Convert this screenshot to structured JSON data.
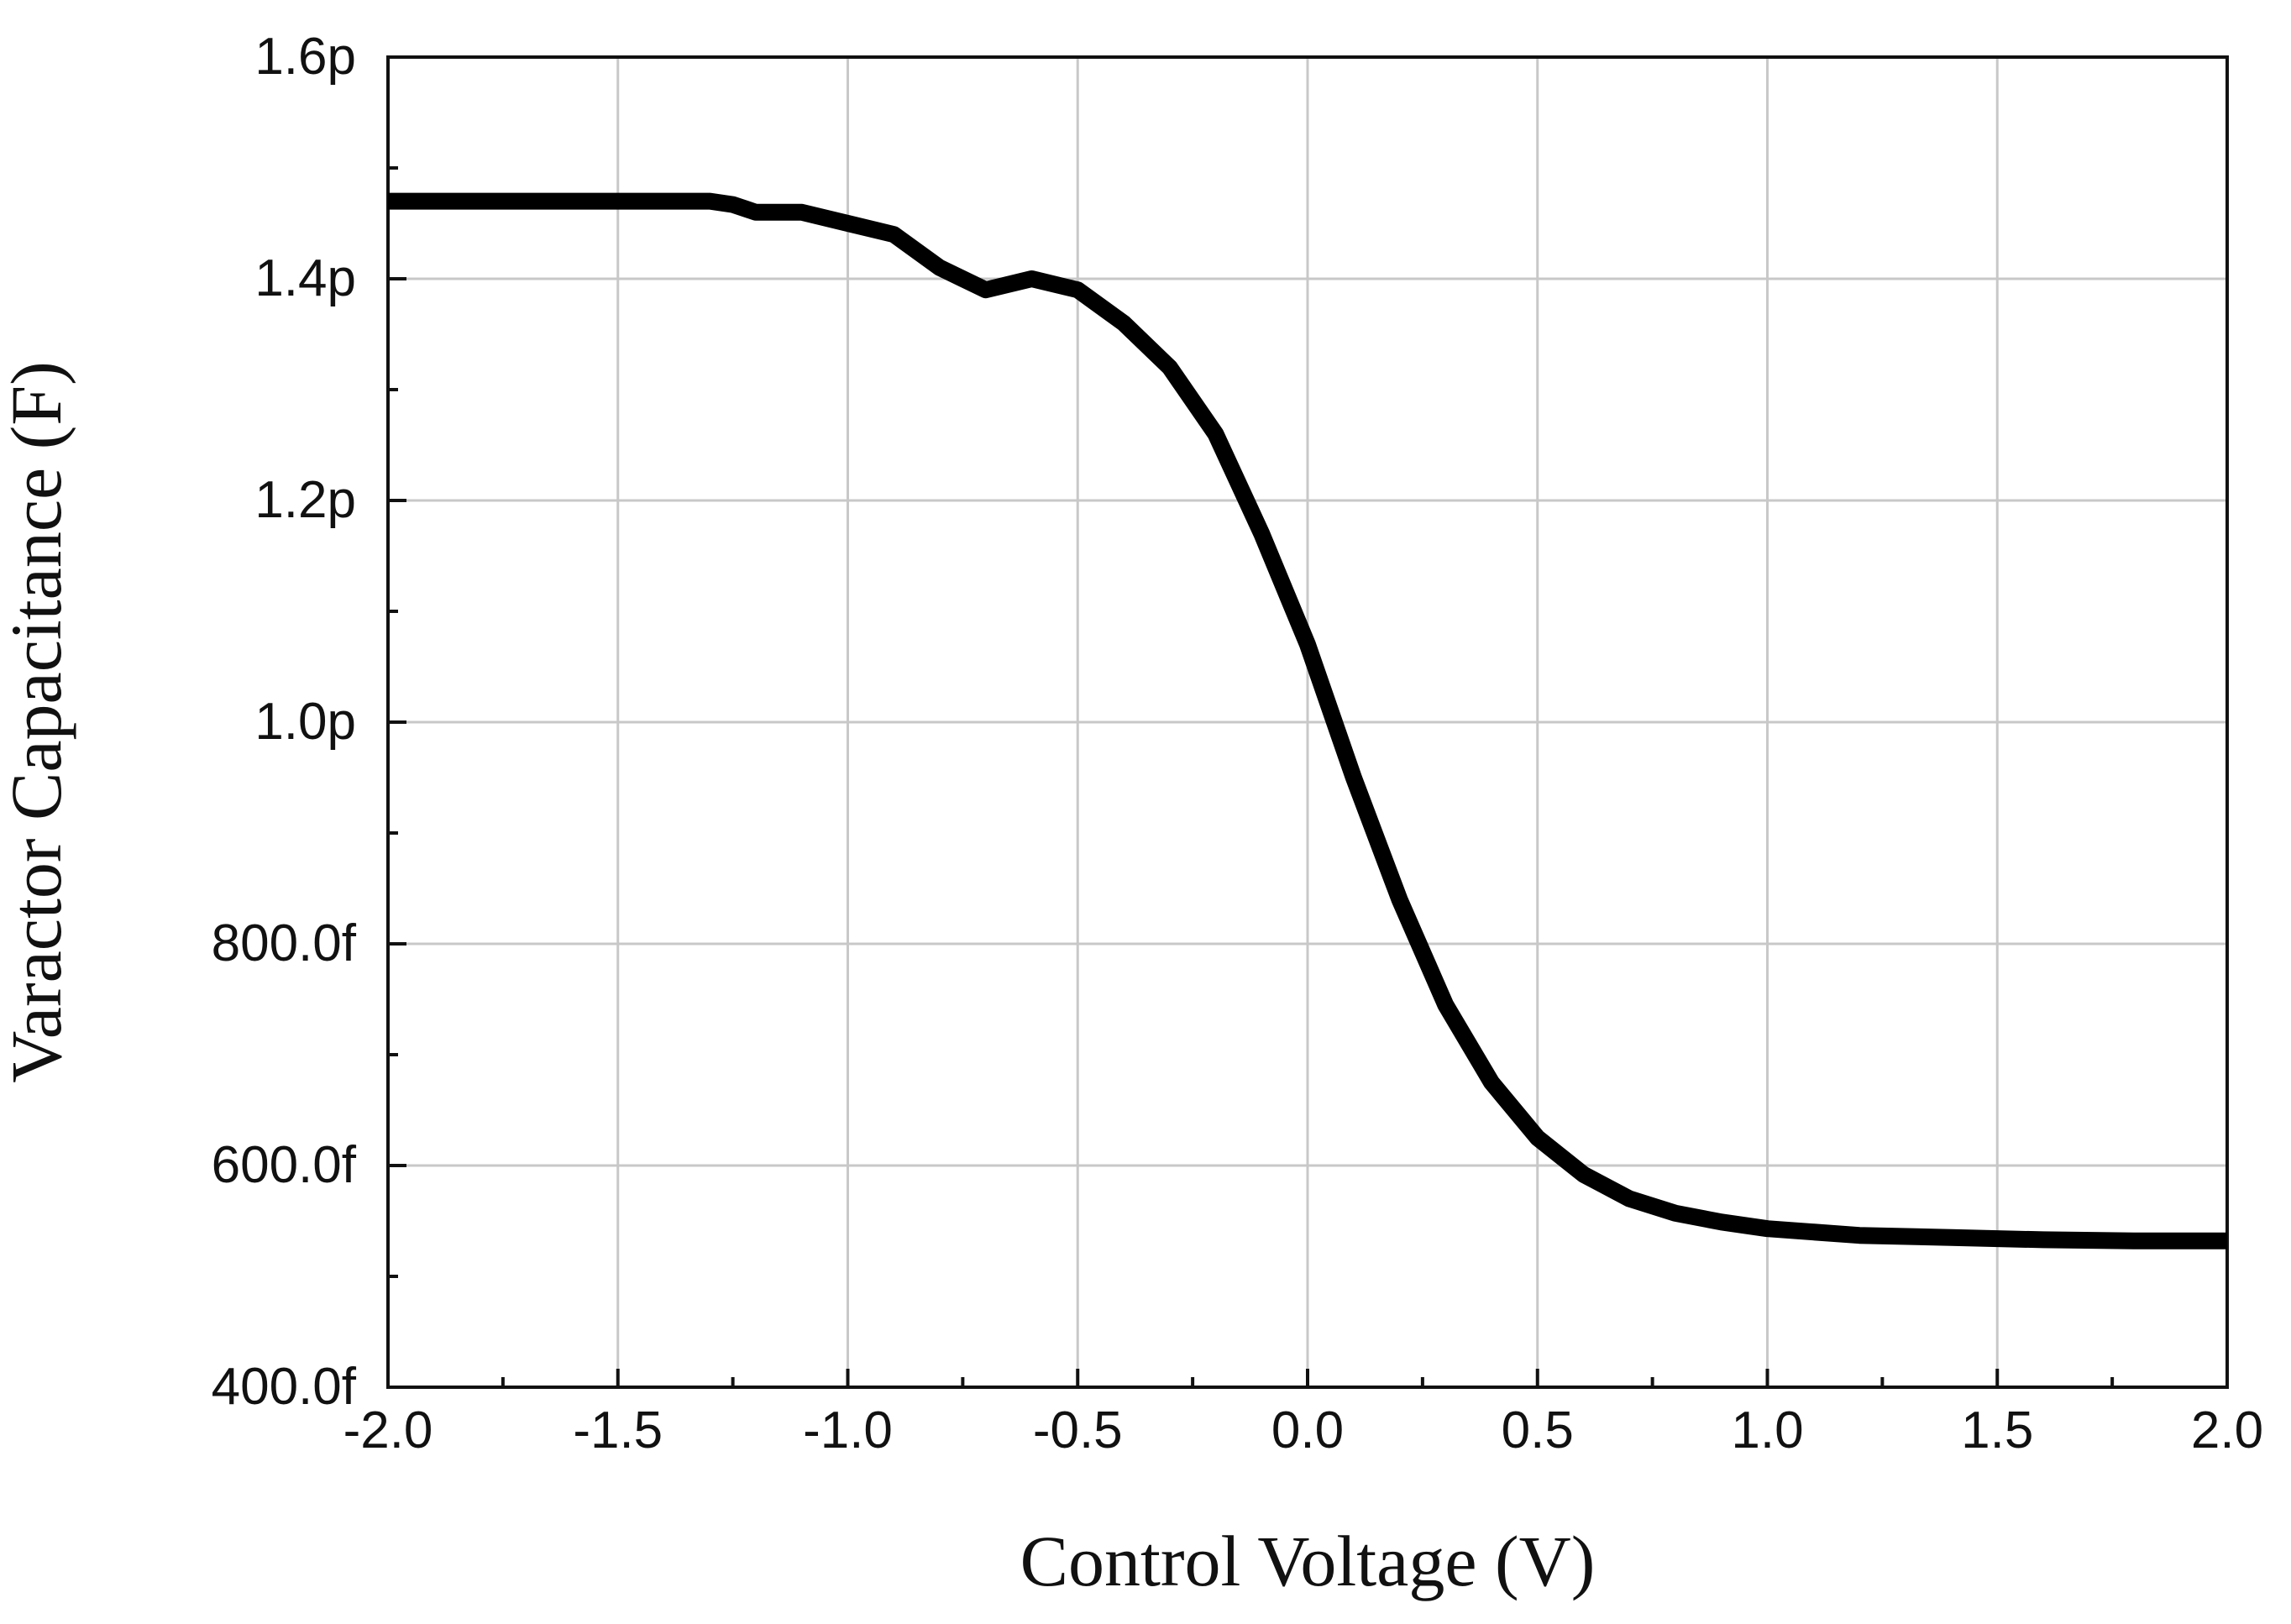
{
  "chart_data": {
    "type": "line",
    "title": "",
    "xlabel": "Control Voltage  (V)",
    "ylabel": "Varactor Capacitance (F)",
    "xlim": [
      -2.0,
      2.0
    ],
    "ylim": [
      400,
      1600
    ],
    "x_ticks": [
      -2.0,
      -1.5,
      -1.0,
      -0.5,
      0.0,
      0.5,
      1.0,
      1.5,
      2.0
    ],
    "x_tick_labels": [
      "-2.0",
      "-1.5",
      "-1.0",
      "-0.5",
      "0.0",
      "0.5",
      "1.0",
      "1.5",
      "2.0"
    ],
    "y_ticks": [
      400,
      600,
      800,
      1000,
      1200,
      1400,
      1600
    ],
    "y_tick_labels": [
      "400.0f",
      "600.0f",
      "800.0f",
      "1.0p",
      "1.2p",
      "1.4p",
      "1.6p"
    ],
    "y_unit": "fF",
    "grid": true,
    "colors": {
      "line": "#000000",
      "grid": "#c8c8c8",
      "axis": "#111111"
    },
    "series": [
      {
        "x": [
          -2.0,
          -1.8,
          -1.6,
          -1.4,
          -1.3,
          -1.25,
          -1.2,
          -1.1,
          -1.0,
          -0.9,
          -0.8,
          -0.7,
          -0.6,
          -0.5,
          -0.4,
          -0.3,
          -0.2,
          -0.1,
          0.0,
          0.1,
          0.2,
          0.3,
          0.4,
          0.5,
          0.6,
          0.7,
          0.8,
          0.9,
          1.0,
          1.2,
          1.4,
          1.6,
          1.8,
          2.0
        ],
        "values": [
          1470,
          1470,
          1470,
          1470,
          1470,
          1467,
          1460,
          1460,
          1450,
          1440,
          1410,
          1390,
          1400,
          1390,
          1360,
          1320,
          1260,
          1170,
          1070,
          950,
          840,
          745,
          675,
          625,
          592,
          570,
          557,
          549,
          543,
          537,
          535,
          533,
          532,
          532
        ]
      }
    ]
  }
}
